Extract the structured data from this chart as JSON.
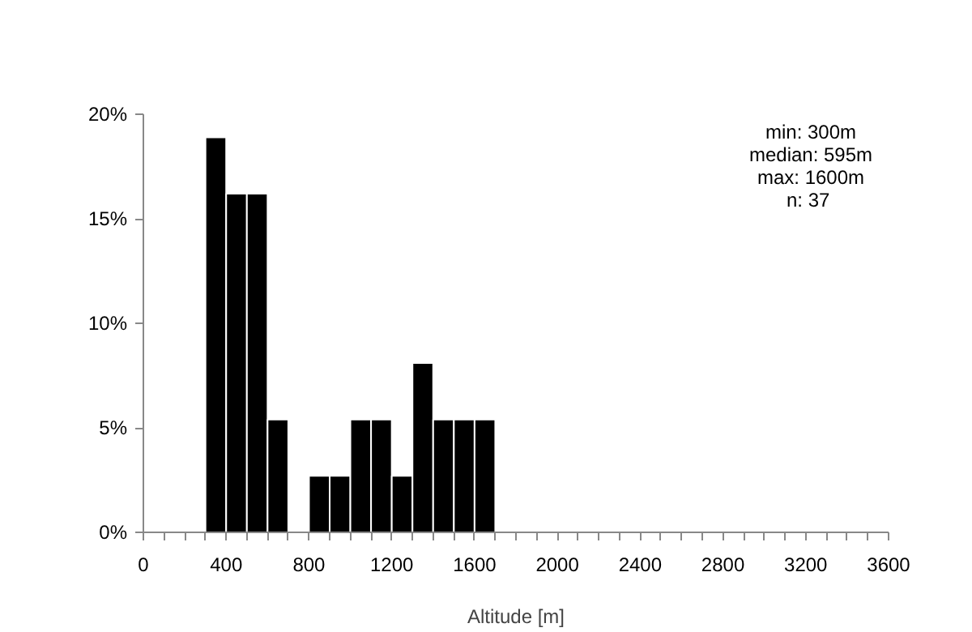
{
  "chart_data": {
    "type": "histogram",
    "xlabel": "Altitude [m]",
    "bins": [
      300,
      400,
      500,
      600,
      700,
      800,
      900,
      1000,
      1100,
      1200,
      1300,
      1400,
      1500,
      1600,
      1700
    ],
    "values": [
      18.9,
      16.2,
      16.2,
      5.4,
      0,
      2.7,
      2.7,
      5.4,
      5.4,
      2.7,
      8.1,
      5.4,
      5.4,
      5.4
    ],
    "color": "#000000",
    "xlim": [
      0,
      3600
    ],
    "xticks": [
      0,
      {
        "value": 100,
        "label": null
      },
      {
        "value": 200,
        "label": null
      },
      {
        "value": 300,
        "label": null
      },
      400,
      {
        "value": 500,
        "label": null
      },
      {
        "value": 600,
        "label": null
      },
      {
        "value": 700,
        "label": null
      },
      800,
      {
        "value": 900,
        "label": null
      },
      {
        "value": 1000,
        "label": null
      },
      {
        "value": 1100,
        "label": null
      },
      1200,
      {
        "value": 1300,
        "label": null
      },
      {
        "value": 1400,
        "label": null
      },
      {
        "value": 1500,
        "label": null
      },
      1600,
      {
        "value": 1700,
        "label": null
      },
      {
        "value": 1800,
        "label": null
      },
      {
        "value": 1900,
        "label": null
      },
      2000,
      {
        "value": 2100,
        "label": null
      },
      {
        "value": 2200,
        "label": null
      },
      {
        "value": 2300,
        "label": null
      },
      2400,
      {
        "value": 2500,
        "label": null
      },
      {
        "value": 2600,
        "label": null
      },
      {
        "value": 2700,
        "label": null
      },
      2800,
      {
        "value": 2900,
        "label": null
      },
      {
        "value": 3000,
        "label": null
      },
      {
        "value": 3100,
        "label": null
      },
      3200,
      {
        "value": 3300,
        "label": null
      },
      {
        "value": 3400,
        "label": null
      },
      {
        "value": 3500,
        "label": null
      },
      3600
    ],
    "ylim": [
      0,
      20
    ],
    "yticks": [
      {
        "value": 0,
        "label": "0%"
      },
      {
        "value": 5,
        "label": "5%"
      },
      {
        "value": 10,
        "label": "10%"
      },
      {
        "value": 15,
        "label": "15%"
      },
      {
        "value": 20,
        "label": "20%"
      }
    ],
    "grid": false,
    "annotations": [
      "min: 300m",
      "median: 595m",
      "max: 1600m",
      "n:  37"
    ]
  }
}
